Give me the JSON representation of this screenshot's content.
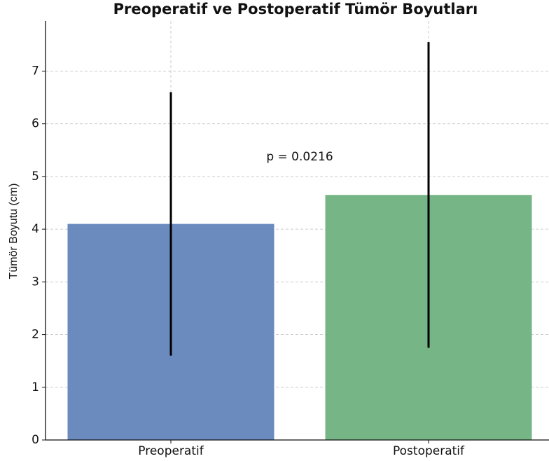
{
  "chart_data": {
    "type": "bar",
    "title": "Preoperatif ve Postoperatif Tümör Boyutları",
    "ylabel": "Tümör Boyutu (cm)",
    "categories": [
      "Preoperatif",
      "Postoperatif"
    ],
    "values": [
      4.1,
      4.65
    ],
    "errors": [
      2.5,
      2.9
    ],
    "colors": [
      "#6b8bbf",
      "#76b686"
    ],
    "annotation": "p = 0.0216",
    "ylim": [
      0,
      7.95
    ],
    "yticks": [
      0,
      1,
      2,
      3,
      4,
      5,
      6,
      7
    ],
    "grid": true
  }
}
